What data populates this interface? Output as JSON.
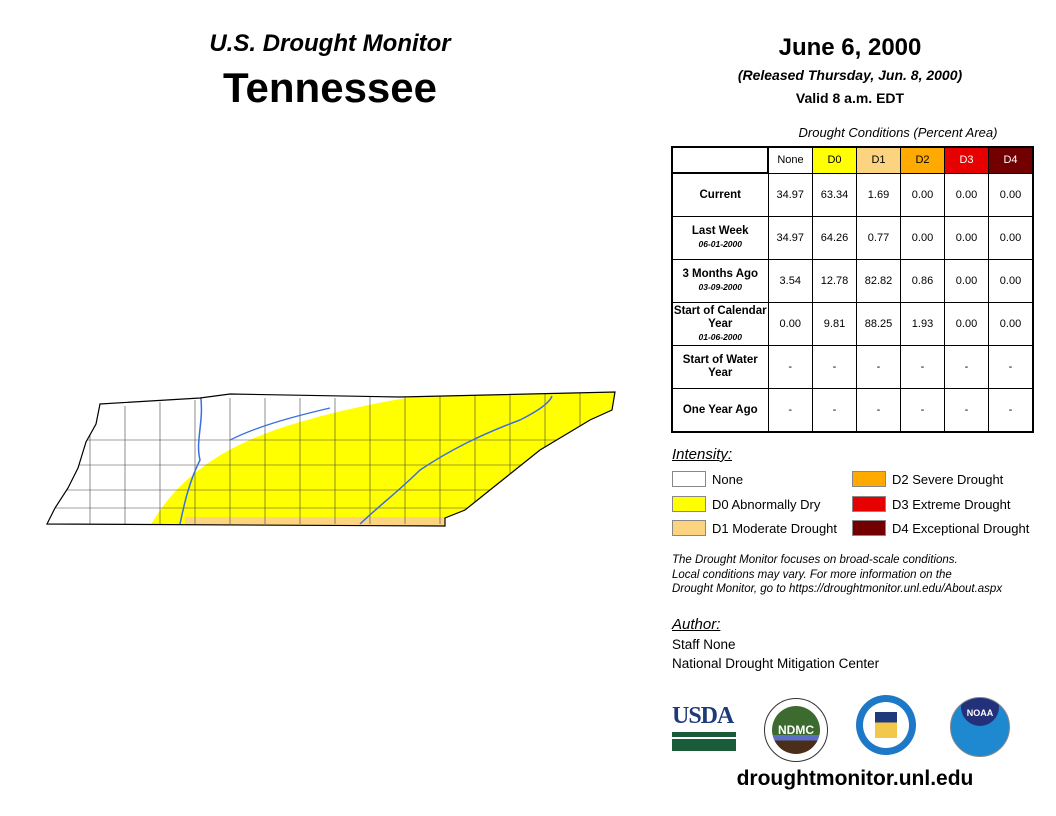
{
  "header": {
    "title": "U.S. Drought Monitor",
    "state": "Tennessee",
    "date": "June 6, 2000",
    "released": "(Released Thursday, Jun. 8, 2000)",
    "valid": "Valid 8 a.m. EDT"
  },
  "table": {
    "caption": "Drought Conditions (Percent Area)",
    "columns": [
      "None",
      "D0",
      "D1",
      "D2",
      "D3",
      "D4"
    ],
    "column_colors": [
      "#ffffff",
      "#ffff00",
      "#fcd37f",
      "#ffaa00",
      "#e60000",
      "#730000"
    ],
    "rows": [
      {
        "label": "Current",
        "sub": "",
        "values": [
          "34.97",
          "63.34",
          "1.69",
          "0.00",
          "0.00",
          "0.00"
        ]
      },
      {
        "label": "Last Week",
        "sub": "06-01-2000",
        "values": [
          "34.97",
          "64.26",
          "0.77",
          "0.00",
          "0.00",
          "0.00"
        ]
      },
      {
        "label": "3 Months Ago",
        "sub": "03-09-2000",
        "values": [
          "3.54",
          "12.78",
          "82.82",
          "0.86",
          "0.00",
          "0.00"
        ]
      },
      {
        "label": "Start of Calendar Year",
        "sub": "01-06-2000",
        "values": [
          "0.00",
          "9.81",
          "88.25",
          "1.93",
          "0.00",
          "0.00"
        ]
      },
      {
        "label": "Start of Water Year",
        "sub": "",
        "values": [
          "-",
          "-",
          "-",
          "-",
          "-",
          "-"
        ]
      },
      {
        "label": "One Year Ago",
        "sub": "",
        "values": [
          "-",
          "-",
          "-",
          "-",
          "-",
          "-"
        ]
      }
    ]
  },
  "legend": {
    "title": "Intensity:",
    "items": [
      {
        "label": "None",
        "color": "#ffffff"
      },
      {
        "label": "D0 Abnormally Dry",
        "color": "#ffff00"
      },
      {
        "label": "D1 Moderate Drought",
        "color": "#fcd37f"
      },
      {
        "label": "D2 Severe Drought",
        "color": "#ffaa00"
      },
      {
        "label": "D3 Extreme Drought",
        "color": "#e60000"
      },
      {
        "label": "D4 Exceptional Drought",
        "color": "#730000"
      }
    ]
  },
  "note": [
    "The Drought Monitor focuses on broad-scale conditions.",
    "Local conditions may vary. For more information on the",
    "Drought Monitor, go to https://droughtmonitor.unl.edu/About.aspx"
  ],
  "author": {
    "title": "Author:",
    "name": "Staff None",
    "org": "National Drought Mitigation Center"
  },
  "logos": {
    "usda": "USDA",
    "ndmc": "NDMC",
    "noaa": "NOAA"
  },
  "footer": {
    "url": "droughtmonitor.unl.edu"
  }
}
